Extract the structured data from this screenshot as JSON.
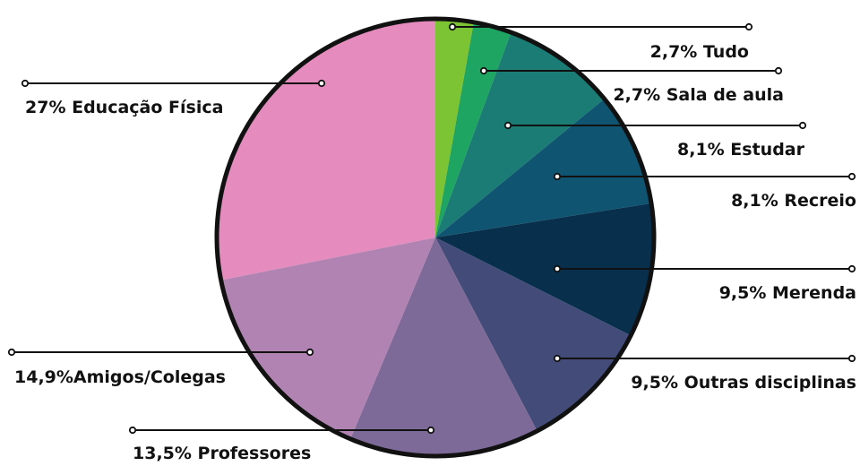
{
  "chart_data": {
    "type": "pie",
    "title": "",
    "start": "top, clockwise",
    "slices": [
      {
        "label": "2,7% Tudo",
        "value": 2.7,
        "color": "#7cc433"
      },
      {
        "label": "2,7% Sala de aula",
        "value": 2.7,
        "color": "#1fa562"
      },
      {
        "label": "8,1% Estudar",
        "value": 8.1,
        "color": "#1a7c74"
      },
      {
        "label": "8,1% Recreio",
        "value": 8.1,
        "color": "#0f5470"
      },
      {
        "label": "9,5% Merenda",
        "value": 9.5,
        "color": "#082f4c"
      },
      {
        "label": "9,5% Outras disciplinas",
        "value": 9.5,
        "color": "#434c78"
      },
      {
        "label": "13,5% Professores",
        "value": 13.5,
        "color": "#7e6a98"
      },
      {
        "label": "14,9%Amigos/Colegas",
        "value": 14.9,
        "color": "#b083b2"
      },
      {
        "label": "27% Educação Física",
        "value": 27.0,
        "color": "#e58bbd"
      }
    ],
    "outline_color": "#111111"
  }
}
